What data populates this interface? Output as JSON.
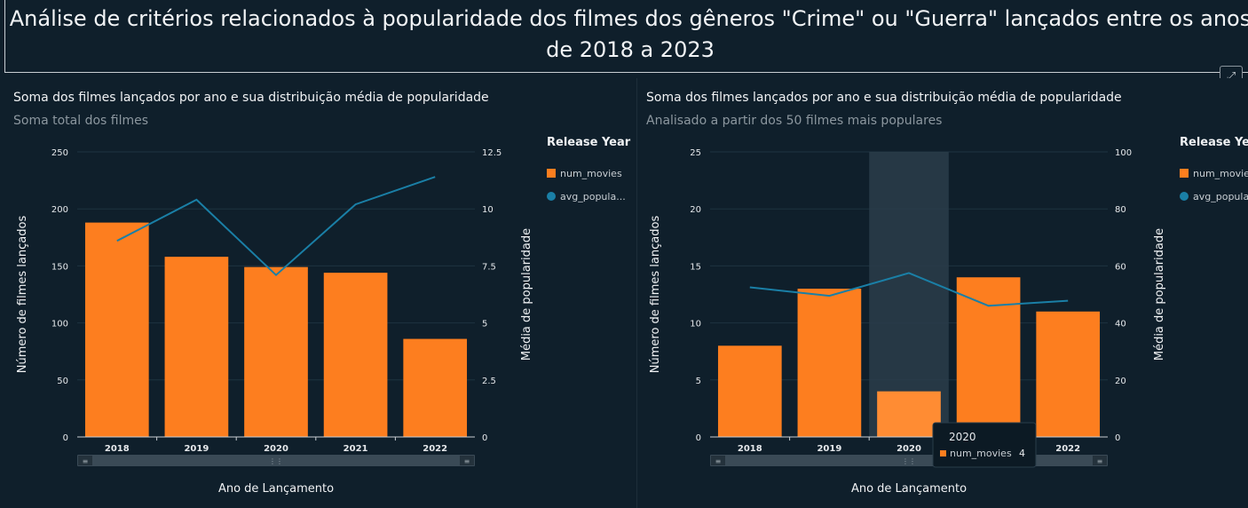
{
  "page": {
    "title": "Análise de critérios relacionados à popularidade dos filmes dos gêneros \"Crime\" ou \"Guerra\" lançados entre os anos de 2018 a 2023"
  },
  "colors": {
    "background": "#0f1f2b",
    "bar": "#fd7e1f",
    "bar_highlight": "#ff8c33",
    "line": "#1a7fa6",
    "text": "#e6e9ec",
    "muted": "#8c979f"
  },
  "legend_title": "Release Year",
  "chart_data": [
    {
      "type": "bar",
      "title": "Soma dos filmes lançados por ano e sua distribuição média de popularidade",
      "subtitle": "Soma total dos filmes",
      "categories": [
        "2018",
        "2019",
        "2020",
        "2021",
        "2022"
      ],
      "series": [
        {
          "name": "num_movies",
          "legend_label": "num_movies",
          "type": "bar",
          "axis": "left",
          "values": [
            188,
            158,
            149,
            144,
            86
          ]
        },
        {
          "name": "avg_popularity",
          "legend_label": "avg_popula...",
          "type": "line",
          "axis": "right",
          "values": [
            8.6,
            10.4,
            7.1,
            10.2,
            11.4
          ]
        }
      ],
      "xlabel": "Ano de Lançamento",
      "ylabel": "Número de filmes lançados",
      "y2label": "Média de popularidade",
      "ylim": [
        0,
        250
      ],
      "yticks": [
        "0",
        "50",
        "100",
        "150",
        "200",
        "250"
      ],
      "y2lim": [
        0,
        12.5
      ],
      "y2ticks": [
        "0",
        "2.5",
        "5",
        "7.5",
        "10",
        "12.5"
      ],
      "legend_position": "right",
      "grid": true
    },
    {
      "type": "bar",
      "title": "Soma dos filmes lançados por ano e sua distribuição média de popularidade",
      "subtitle": "Analisado a partir dos 50 filmes mais populares",
      "categories": [
        "2018",
        "2019",
        "2020",
        "2021",
        "2022"
      ],
      "series": [
        {
          "name": "num_movies",
          "legend_label": "num_movie",
          "type": "bar",
          "axis": "left",
          "values": [
            8,
            13,
            4,
            14,
            11
          ]
        },
        {
          "name": "avg_popularity",
          "legend_label": "avg_popula",
          "type": "line",
          "axis": "right",
          "values": [
            52.5,
            49.5,
            57.5,
            46,
            47.8
          ]
        }
      ],
      "xlabel": "Ano de Lançamento",
      "ylabel": "Número de filmes lançados",
      "y2label": "Média de popularidade",
      "ylim": [
        0,
        25
      ],
      "yticks": [
        "0",
        "5",
        "10",
        "15",
        "20",
        "25"
      ],
      "y2lim": [
        0,
        100
      ],
      "y2ticks": [
        "0",
        "20",
        "40",
        "60",
        "80",
        "100"
      ],
      "legend_position": "right",
      "grid": true,
      "highlighted_category": "2020",
      "tooltip": {
        "title": "2020",
        "series": "num_movies",
        "value": "4"
      }
    }
  ]
}
